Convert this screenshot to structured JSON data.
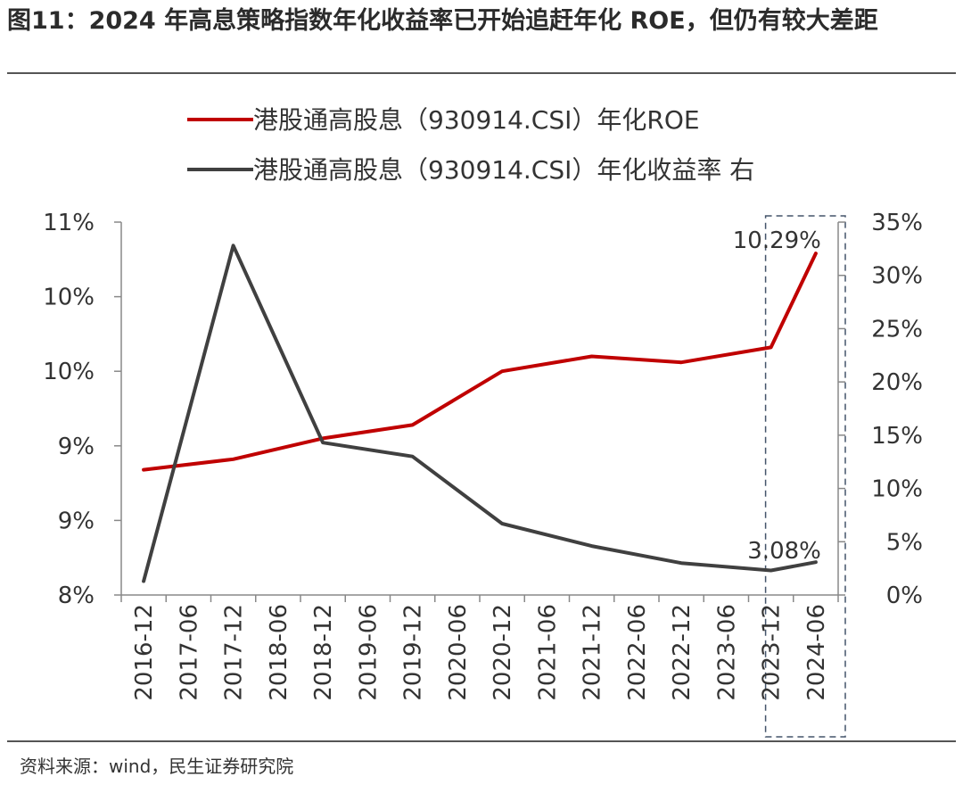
{
  "page": {
    "title": "图11：2024 年高息策略指数年化收益率已开始追赶年化 ROE，但仍有较大差距",
    "source": "资料来源：wind，民生证券研究院"
  },
  "chart_data": {
    "type": "line",
    "title": "",
    "x": [
      "2016-12",
      "2017-06",
      "2017-12",
      "2018-06",
      "2018-12",
      "2019-06",
      "2019-12",
      "2020-06",
      "2020-12",
      "2021-06",
      "2021-12",
      "2022-06",
      "2022-12",
      "2023-06",
      "2023-12",
      "2024-06"
    ],
    "left_axis": {
      "tick_values": [
        8.0,
        8.5,
        9.0,
        9.5,
        10.0,
        10.5
      ],
      "tick_labels": [
        "8%",
        "9%",
        "9%",
        "10%",
        "10%",
        "11%"
      ],
      "ylim": [
        8.0,
        10.5
      ]
    },
    "right_axis": {
      "tick_values": [
        0,
        5,
        10,
        15,
        20,
        25,
        30,
        35
      ],
      "tick_labels": [
        "0%",
        "5%",
        "10%",
        "15%",
        "20%",
        "25%",
        "30%",
        "35%"
      ],
      "ylim": [
        0,
        35
      ]
    },
    "series": [
      {
        "name": "港股通高股息（930914.CSI）年化ROE",
        "axis": "left",
        "color": "#c00000",
        "x": [
          "2016-12",
          "2017-12",
          "2018-12",
          "2019-12",
          "2020-12",
          "2021-12",
          "2022-12",
          "2023-12",
          "2024-06"
        ],
        "values": [
          8.84,
          8.91,
          9.05,
          9.14,
          9.5,
          9.6,
          9.56,
          9.66,
          10.29
        ]
      },
      {
        "name": "港股通高股息（930914.CSI）年化收益率 右",
        "axis": "right",
        "color": "#404040",
        "x": [
          "2016-12",
          "2017-12",
          "2018-12",
          "2019-12",
          "2020-12",
          "2021-12",
          "2022-12",
          "2023-12",
          "2024-06"
        ],
        "values": [
          1.3,
          32.8,
          14.3,
          13.0,
          6.7,
          4.6,
          3.0,
          2.3,
          3.08
        ]
      }
    ],
    "annotations": [
      {
        "text": "10.29%",
        "series": 0,
        "x": "2024-06"
      },
      {
        "text": "3.08%",
        "series": 1,
        "x": "2024-06"
      }
    ],
    "legend_position": "top-center",
    "highlight_box": [
      "2023-12",
      "2024-06"
    ],
    "grid": false
  }
}
